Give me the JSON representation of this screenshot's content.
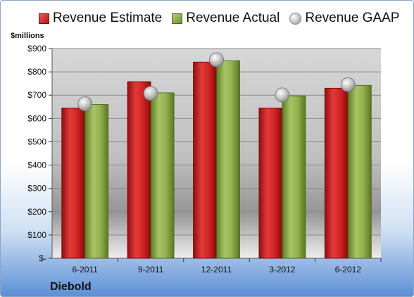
{
  "legend": {
    "estimate": "Revenue Estimate",
    "actual": "Revenue Actual",
    "gaap": "Revenue GAAP"
  },
  "unit_label": "$millions",
  "company": "Diebold",
  "colors": {
    "estimate": "#c71d1d",
    "actual": "#8aab45",
    "gaap": "#c9c9c9"
  },
  "chart_data": {
    "type": "bar",
    "categories": [
      "6-2011",
      "9-2011",
      "12-2011",
      "3-2012",
      "6-2012"
    ],
    "series": [
      {
        "name": "Revenue Estimate",
        "values": [
          645,
          758,
          842,
          645,
          730
        ]
      },
      {
        "name": "Revenue Actual",
        "values": [
          660,
          710,
          848,
          697,
          742
        ]
      },
      {
        "name": "Revenue GAAP",
        "values": [
          663,
          708,
          852,
          701,
          745
        ]
      }
    ],
    "yticks": [
      "$-",
      "$100",
      "$200",
      "$300",
      "$400",
      "$500",
      "$600",
      "$700",
      "$800",
      "$900"
    ],
    "ylim": [
      0,
      900
    ],
    "grid": true,
    "legend_position": "top"
  }
}
